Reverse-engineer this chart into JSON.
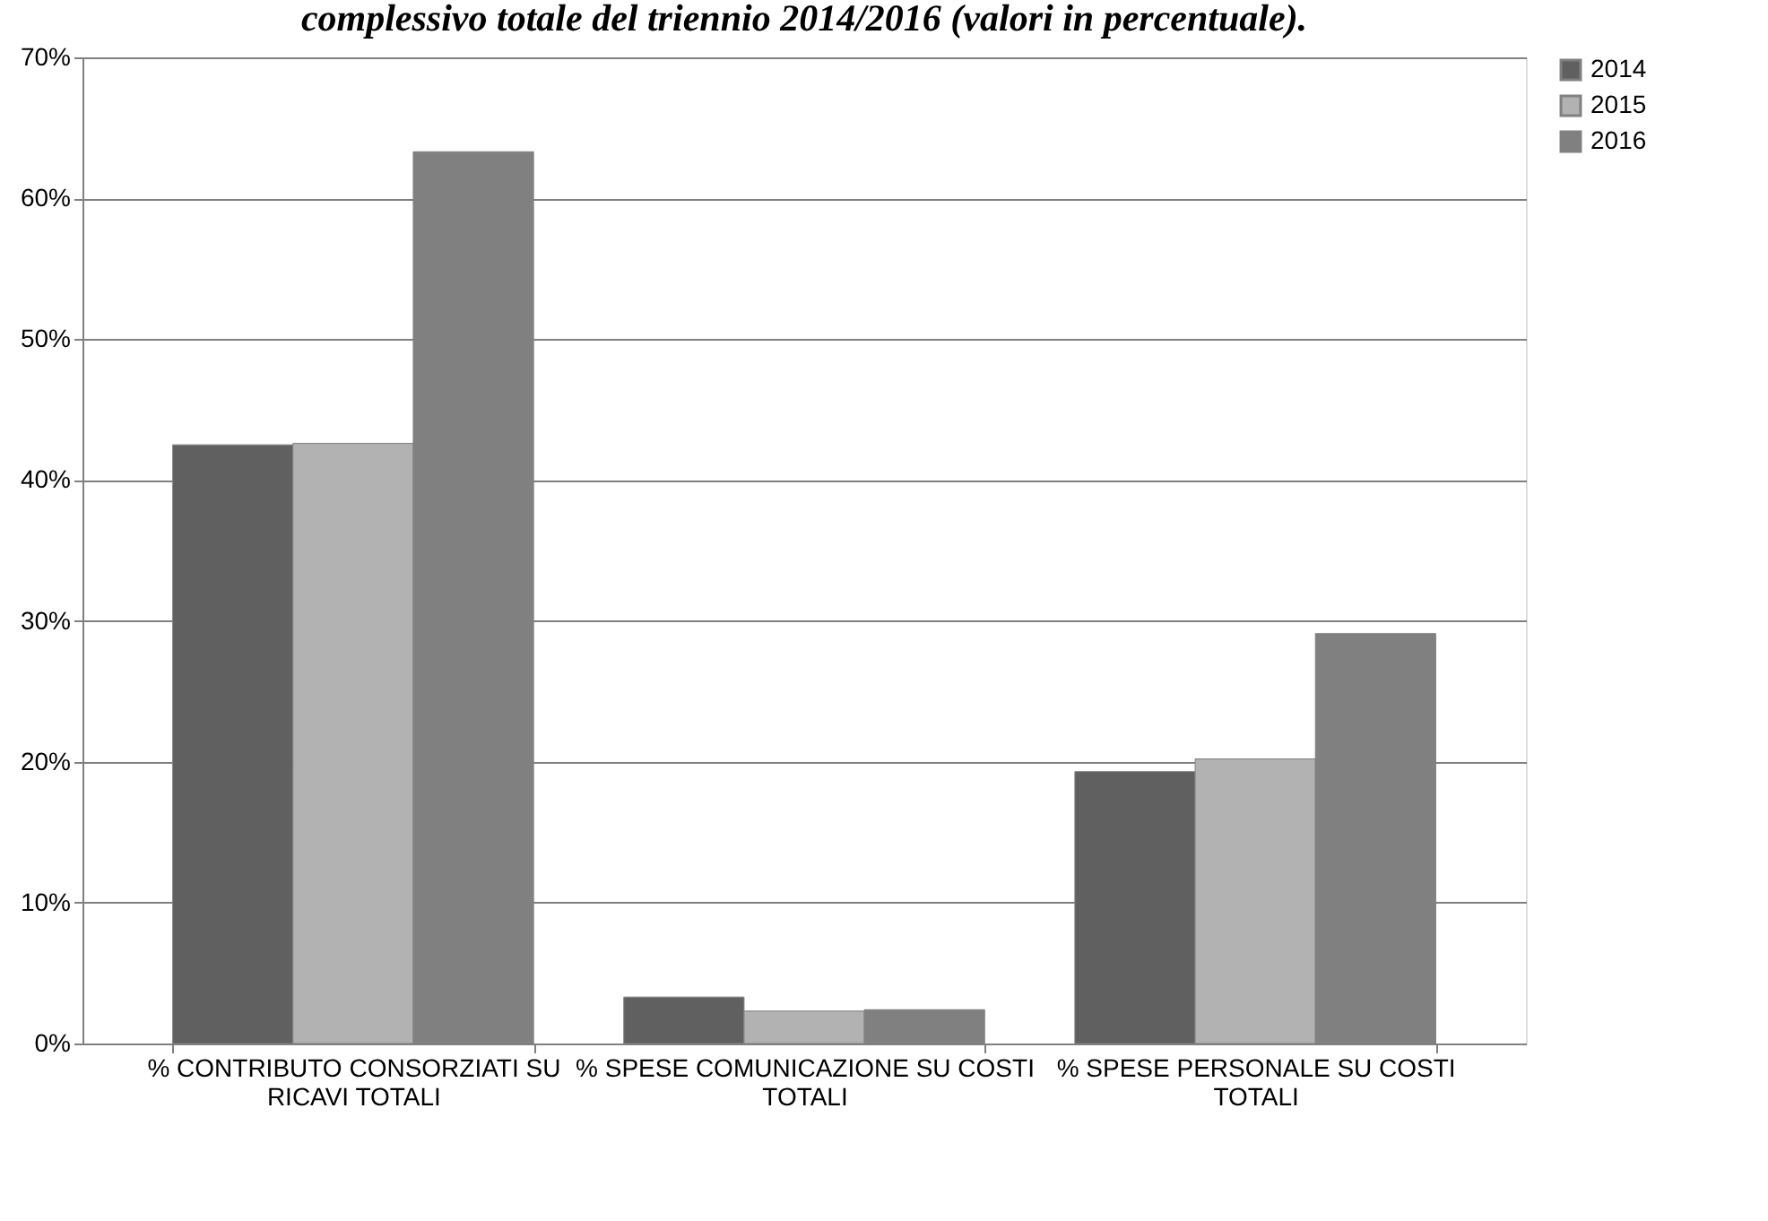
{
  "chart_data": {
    "type": "bar",
    "title": "complessivo totale del triennio 2014/2016 (valori in percentuale).",
    "categories": [
      "% CONTRIBUTO CONSORZIATI SU RICAVI TOTALI",
      "% SPESE COMUNICAZIONE SU COSTI TOTALI",
      "% SPESE PERSONALE SU COSTI TOTALI"
    ],
    "series": [
      {
        "name": "2014",
        "color": "#606060",
        "values": [
          42.5,
          3.3,
          19.3
        ]
      },
      {
        "name": "2015",
        "color": "#b2b2b2",
        "values": [
          42.6,
          2.3,
          20.2
        ]
      },
      {
        "name": "2016",
        "color": "#808080",
        "values": [
          63.3,
          2.4,
          29.1
        ]
      }
    ],
    "ylim": [
      0,
      70
    ],
    "yticks": [
      {
        "value": 0,
        "label": "0%"
      },
      {
        "value": 10,
        "label": "10%"
      },
      {
        "value": 20,
        "label": "20%"
      },
      {
        "value": 30,
        "label": "30%"
      },
      {
        "value": 40,
        "label": "40%"
      },
      {
        "value": 50,
        "label": "50%"
      },
      {
        "value": 60,
        "label": "60%"
      },
      {
        "value": 70,
        "label": "70%"
      }
    ],
    "grid": "y",
    "legend": "right"
  }
}
